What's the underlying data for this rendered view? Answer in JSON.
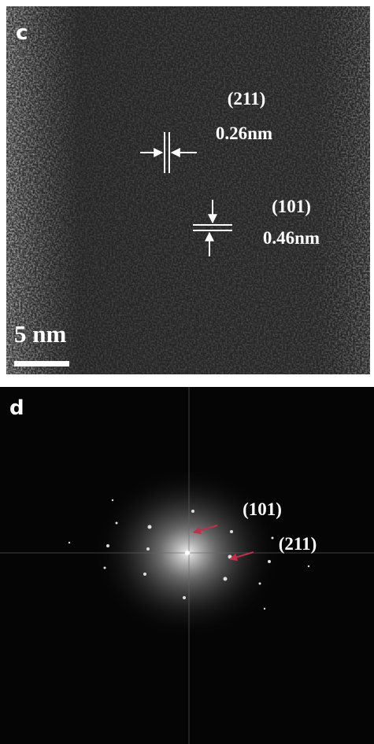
{
  "panel_c": {
    "label": "c",
    "annotations": [
      {
        "plane": "(211)",
        "spacing": "0.26nm"
      },
      {
        "plane": "(101)",
        "spacing": "0.46nm"
      }
    ],
    "scale_bar": "5 nm"
  },
  "panel_d": {
    "label": "d",
    "annotations": [
      "(101)",
      "(211)"
    ]
  }
}
